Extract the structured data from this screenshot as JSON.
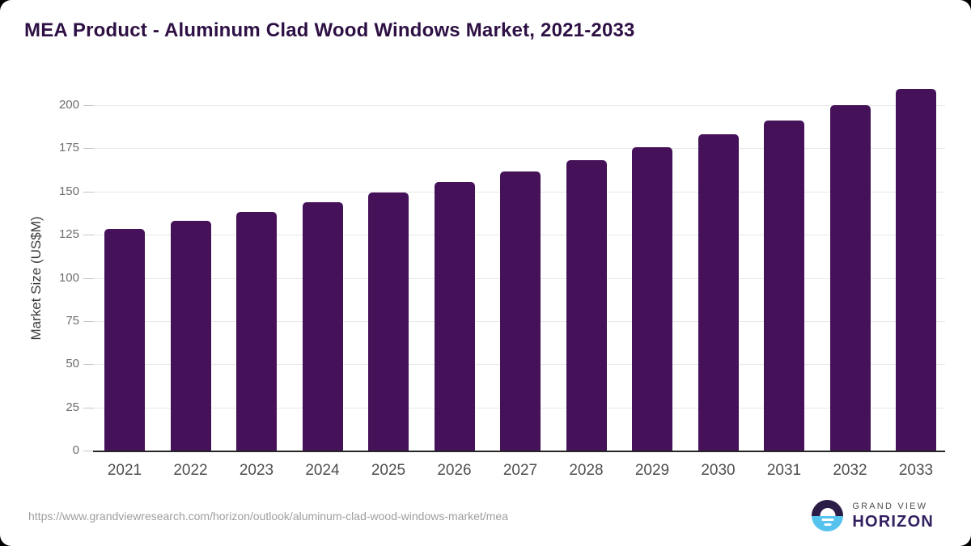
{
  "header": {
    "title": "MEA Product - Aluminum Clad Wood Windows Market, 2021-2033"
  },
  "chart_data": {
    "type": "bar",
    "title": "MEA Product - Aluminum Clad Wood Windows Market, 2021-2033",
    "categories": [
      "2021",
      "2022",
      "2023",
      "2024",
      "2025",
      "2026",
      "2027",
      "2028",
      "2029",
      "2030",
      "2031",
      "2032",
      "2033"
    ],
    "values": [
      128.3,
      133.1,
      138.2,
      143.8,
      149.4,
      155.3,
      161.4,
      168.1,
      175.7,
      183.0,
      191.3,
      200.0,
      209.4
    ],
    "xlabel": "",
    "ylabel": "Market Size (US$M)",
    "y_ticks": [
      0,
      25,
      50,
      75,
      100,
      125,
      150,
      175,
      200
    ],
    "ylim": [
      0,
      212
    ],
    "grid": true,
    "legend_position": "none",
    "bar_color": "#45125A"
  },
  "colors": {
    "title": "#2E1044",
    "bar": "#45125A",
    "gridline": "#e8e8e8",
    "axis_line": "#262626",
    "logo_dark": "#2B1B47",
    "logo_blue": "#56C3EF"
  },
  "footer": {
    "source_url": "https://www.grandviewresearch.com/horizon/outlook/aluminum-clad-wood-windows-market/mea",
    "logo": {
      "top": "GRAND VIEW",
      "bottom": "HORIZON"
    }
  }
}
